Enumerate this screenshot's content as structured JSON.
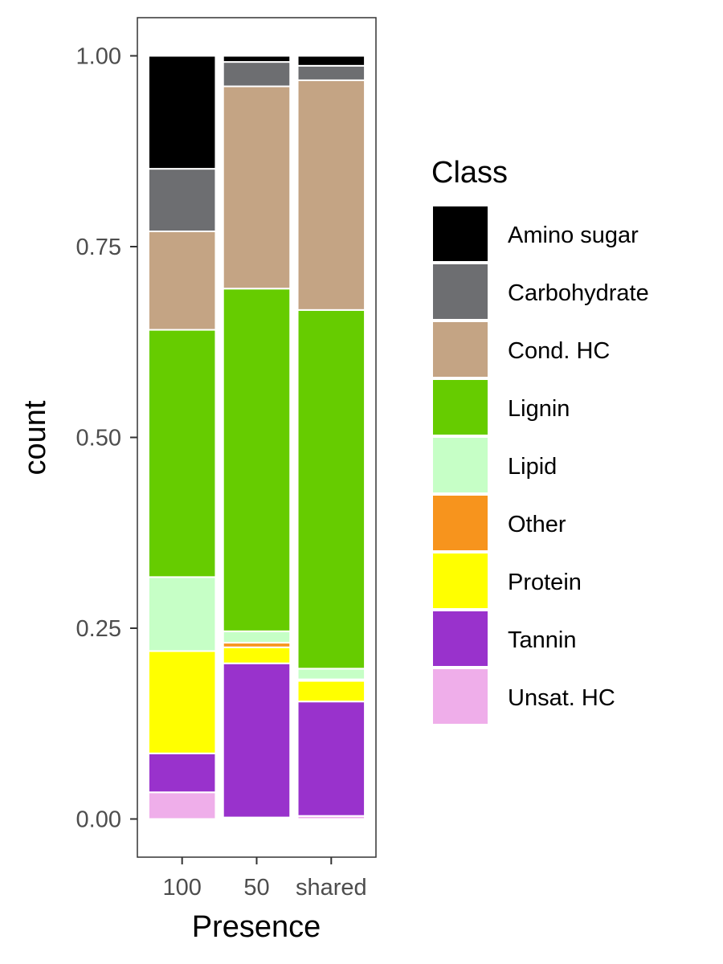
{
  "chart_data": {
    "type": "bar",
    "stacked": true,
    "xlabel": "Presence",
    "ylabel": "count",
    "categories": [
      "100",
      "50",
      "shared"
    ],
    "ylim": [
      -0.05,
      1.05
    ],
    "yticks": [
      0.0,
      0.25,
      0.5,
      0.75,
      1.0
    ],
    "ytick_labels": [
      "0.00",
      "0.25",
      "0.50",
      "0.75",
      "1.00"
    ],
    "legend": {
      "title": "Class",
      "position": "right"
    },
    "grid": false,
    "series": [
      {
        "name": "Unsat. HC",
        "color": "#efaeea",
        "values": [
          0.035,
          0.002,
          0.004
        ]
      },
      {
        "name": "Tannin",
        "color": "#9932cc",
        "values": [
          0.051,
          0.202,
          0.15
        ]
      },
      {
        "name": "Protein",
        "color": "#ffff00",
        "values": [
          0.134,
          0.021,
          0.027
        ]
      },
      {
        "name": "Other",
        "color": "#f7941d",
        "values": [
          0.0,
          0.006,
          0.002
        ]
      },
      {
        "name": "Lipid",
        "color": "#c6ffc6",
        "values": [
          0.097,
          0.015,
          0.014
        ]
      },
      {
        "name": "Lignin",
        "color": "#66cc00",
        "values": [
          0.324,
          0.449,
          0.47
        ]
      },
      {
        "name": "Cond. HC",
        "color": "#c4a484",
        "values": [
          0.129,
          0.265,
          0.301
        ]
      },
      {
        "name": "Carbohydrate",
        "color": "#6d6e71",
        "values": [
          0.082,
          0.032,
          0.019
        ]
      },
      {
        "name": "Amino sugar",
        "color": "#000000",
        "values": [
          0.148,
          0.008,
          0.013
        ]
      }
    ]
  }
}
